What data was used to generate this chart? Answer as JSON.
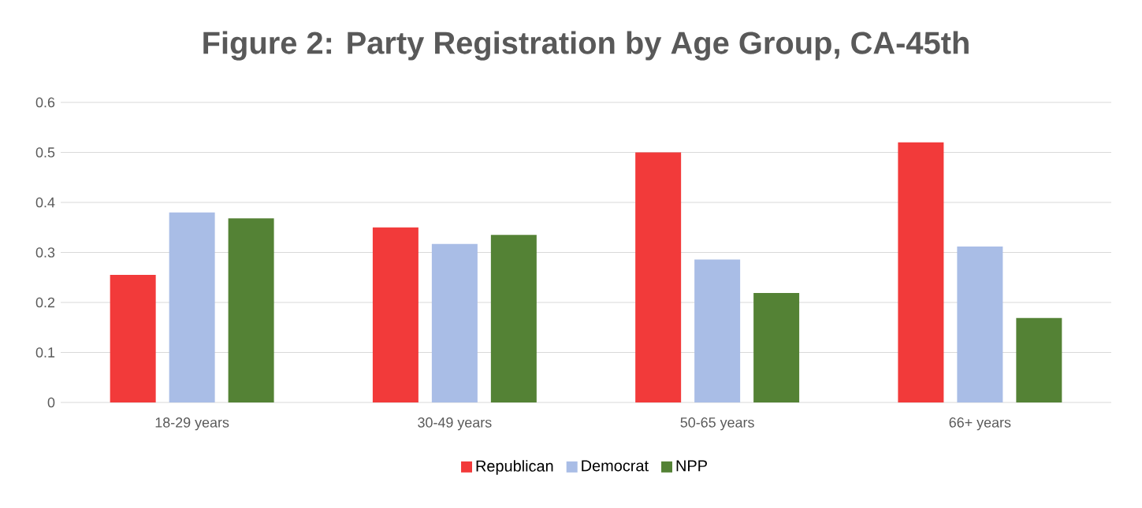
{
  "chart_data": {
    "type": "bar",
    "title": "Figure 2: Party Registration by Age Group, CA-45th",
    "categories": [
      "18-29 years",
      "30-49 years",
      "50-65 years",
      "66+ years"
    ],
    "series": [
      {
        "name": "Republican",
        "color": "#f23a3a",
        "values": [
          0.255,
          0.35,
          0.5,
          0.52
        ]
      },
      {
        "name": "Democrat",
        "color": "#a9bde6",
        "values": [
          0.38,
          0.317,
          0.286,
          0.312
        ]
      },
      {
        "name": "NPP",
        "color": "#548235",
        "values": [
          0.368,
          0.335,
          0.219,
          0.169
        ]
      }
    ],
    "ylim": [
      0,
      0.6
    ],
    "yticks": [
      0,
      0.1,
      0.2,
      0.3,
      0.4,
      0.5,
      0.6
    ],
    "grid": "y",
    "legend": "bottom"
  }
}
